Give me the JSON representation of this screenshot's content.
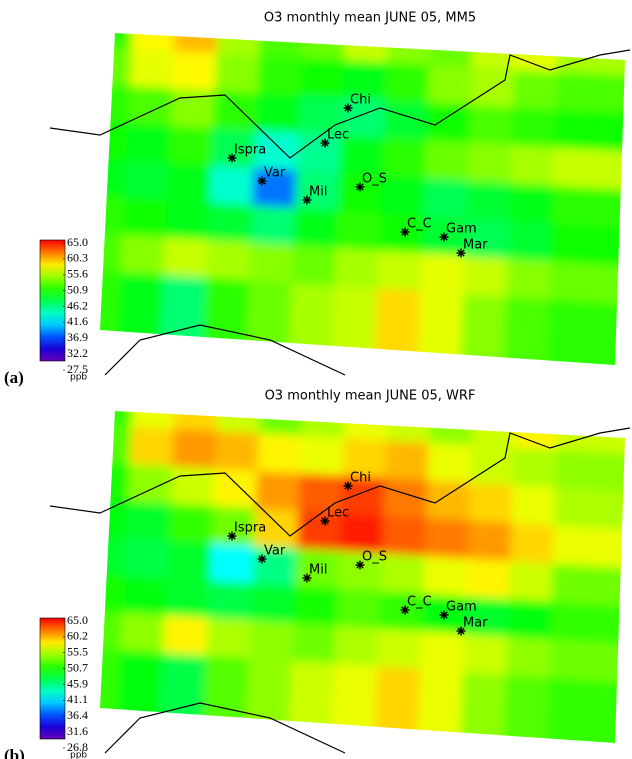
{
  "panels": [
    {
      "label": "(a)",
      "title": "O3 monthly mean JUNE 05, MM5",
      "unit": "ppb",
      "colorbar": {
        "lim": [
          27.5,
          65
        ],
        "ticks": [
          {
            "value": 65,
            "label": "65.0"
          },
          60.3,
          55.6,
          50.9,
          46.2,
          41.6,
          36.9,
          32.2,
          27.5
        ]
      },
      "stations": [
        {
          "label": "Chi"
        },
        {
          "label": "Lec"
        },
        {
          "label": "Ispra"
        },
        {
          "label": "Var"
        },
        {
          "label": "Mil"
        },
        {
          "label": "O_S"
        },
        {
          "label": "C_C"
        },
        {
          "label": "Gam"
        },
        {
          "label": "Mar"
        }
      ],
      "grid": [
        [
          50,
          57,
          59,
          54,
          51,
          52,
          55,
          53,
          52,
          55,
          56,
          54
        ],
        [
          52,
          56,
          57,
          53,
          50,
          49,
          48,
          50,
          53,
          54,
          52,
          51
        ],
        [
          50,
          51,
          53,
          50,
          48,
          46,
          45,
          47,
          49,
          51,
          50,
          49
        ],
        [
          49,
          48,
          50,
          46,
          42,
          44,
          48,
          50,
          52,
          53,
          54,
          55
        ],
        [
          48,
          47,
          48,
          42,
          36,
          45,
          49,
          48,
          46,
          47,
          48,
          50
        ],
        [
          50,
          49,
          48,
          47,
          45,
          48,
          50,
          49,
          47,
          46,
          47,
          49
        ],
        [
          51,
          53,
          55,
          54,
          53,
          52,
          54,
          55,
          56,
          55,
          53,
          52
        ],
        [
          50,
          48,
          45,
          50,
          52,
          54,
          55,
          58,
          56,
          53,
          51,
          50
        ]
      ]
    },
    {
      "label": "(b)",
      "title": "O3 monthly mean JUNE 05, WRF",
      "unit": "ppb",
      "colorbar": {
        "lim": [
          26.8,
          65
        ],
        "ticks": [
          {
            "value": 65,
            "label": "65.0"
          },
          60.2,
          55.5,
          50.7,
          45.9,
          41.1,
          36.4,
          31.6,
          26.8
        ]
      },
      "stations": [
        {
          "label": "Chi"
        },
        {
          "label": "Lec"
        },
        {
          "label": "Ispra"
        },
        {
          "label": "Var"
        },
        {
          "label": "Mil"
        },
        {
          "label": "O_S"
        },
        {
          "label": "C_C"
        },
        {
          "label": "Gam"
        },
        {
          "label": "Mar"
        }
      ],
      "grid": [
        [
          50,
          56,
          58,
          55,
          52,
          54,
          56,
          55,
          53,
          55,
          57,
          55
        ],
        [
          51,
          58,
          60,
          59,
          57,
          56,
          58,
          59,
          56,
          55,
          54,
          53
        ],
        [
          49,
          53,
          55,
          57,
          60,
          62,
          63,
          61,
          59,
          58,
          56,
          54
        ],
        [
          48,
          47,
          50,
          52,
          58,
          63,
          64,
          62,
          61,
          60,
          58,
          56
        ],
        [
          47,
          46,
          47,
          40,
          44,
          52,
          53,
          54,
          56,
          57,
          55,
          52
        ],
        [
          49,
          48,
          47,
          46,
          47,
          49,
          51,
          50,
          48,
          47,
          48,
          50
        ],
        [
          51,
          53,
          57,
          54,
          53,
          52,
          54,
          55,
          56,
          55,
          53,
          52
        ],
        [
          50,
          48,
          46,
          51,
          53,
          55,
          56,
          58,
          56,
          53,
          51,
          50
        ]
      ]
    }
  ]
}
